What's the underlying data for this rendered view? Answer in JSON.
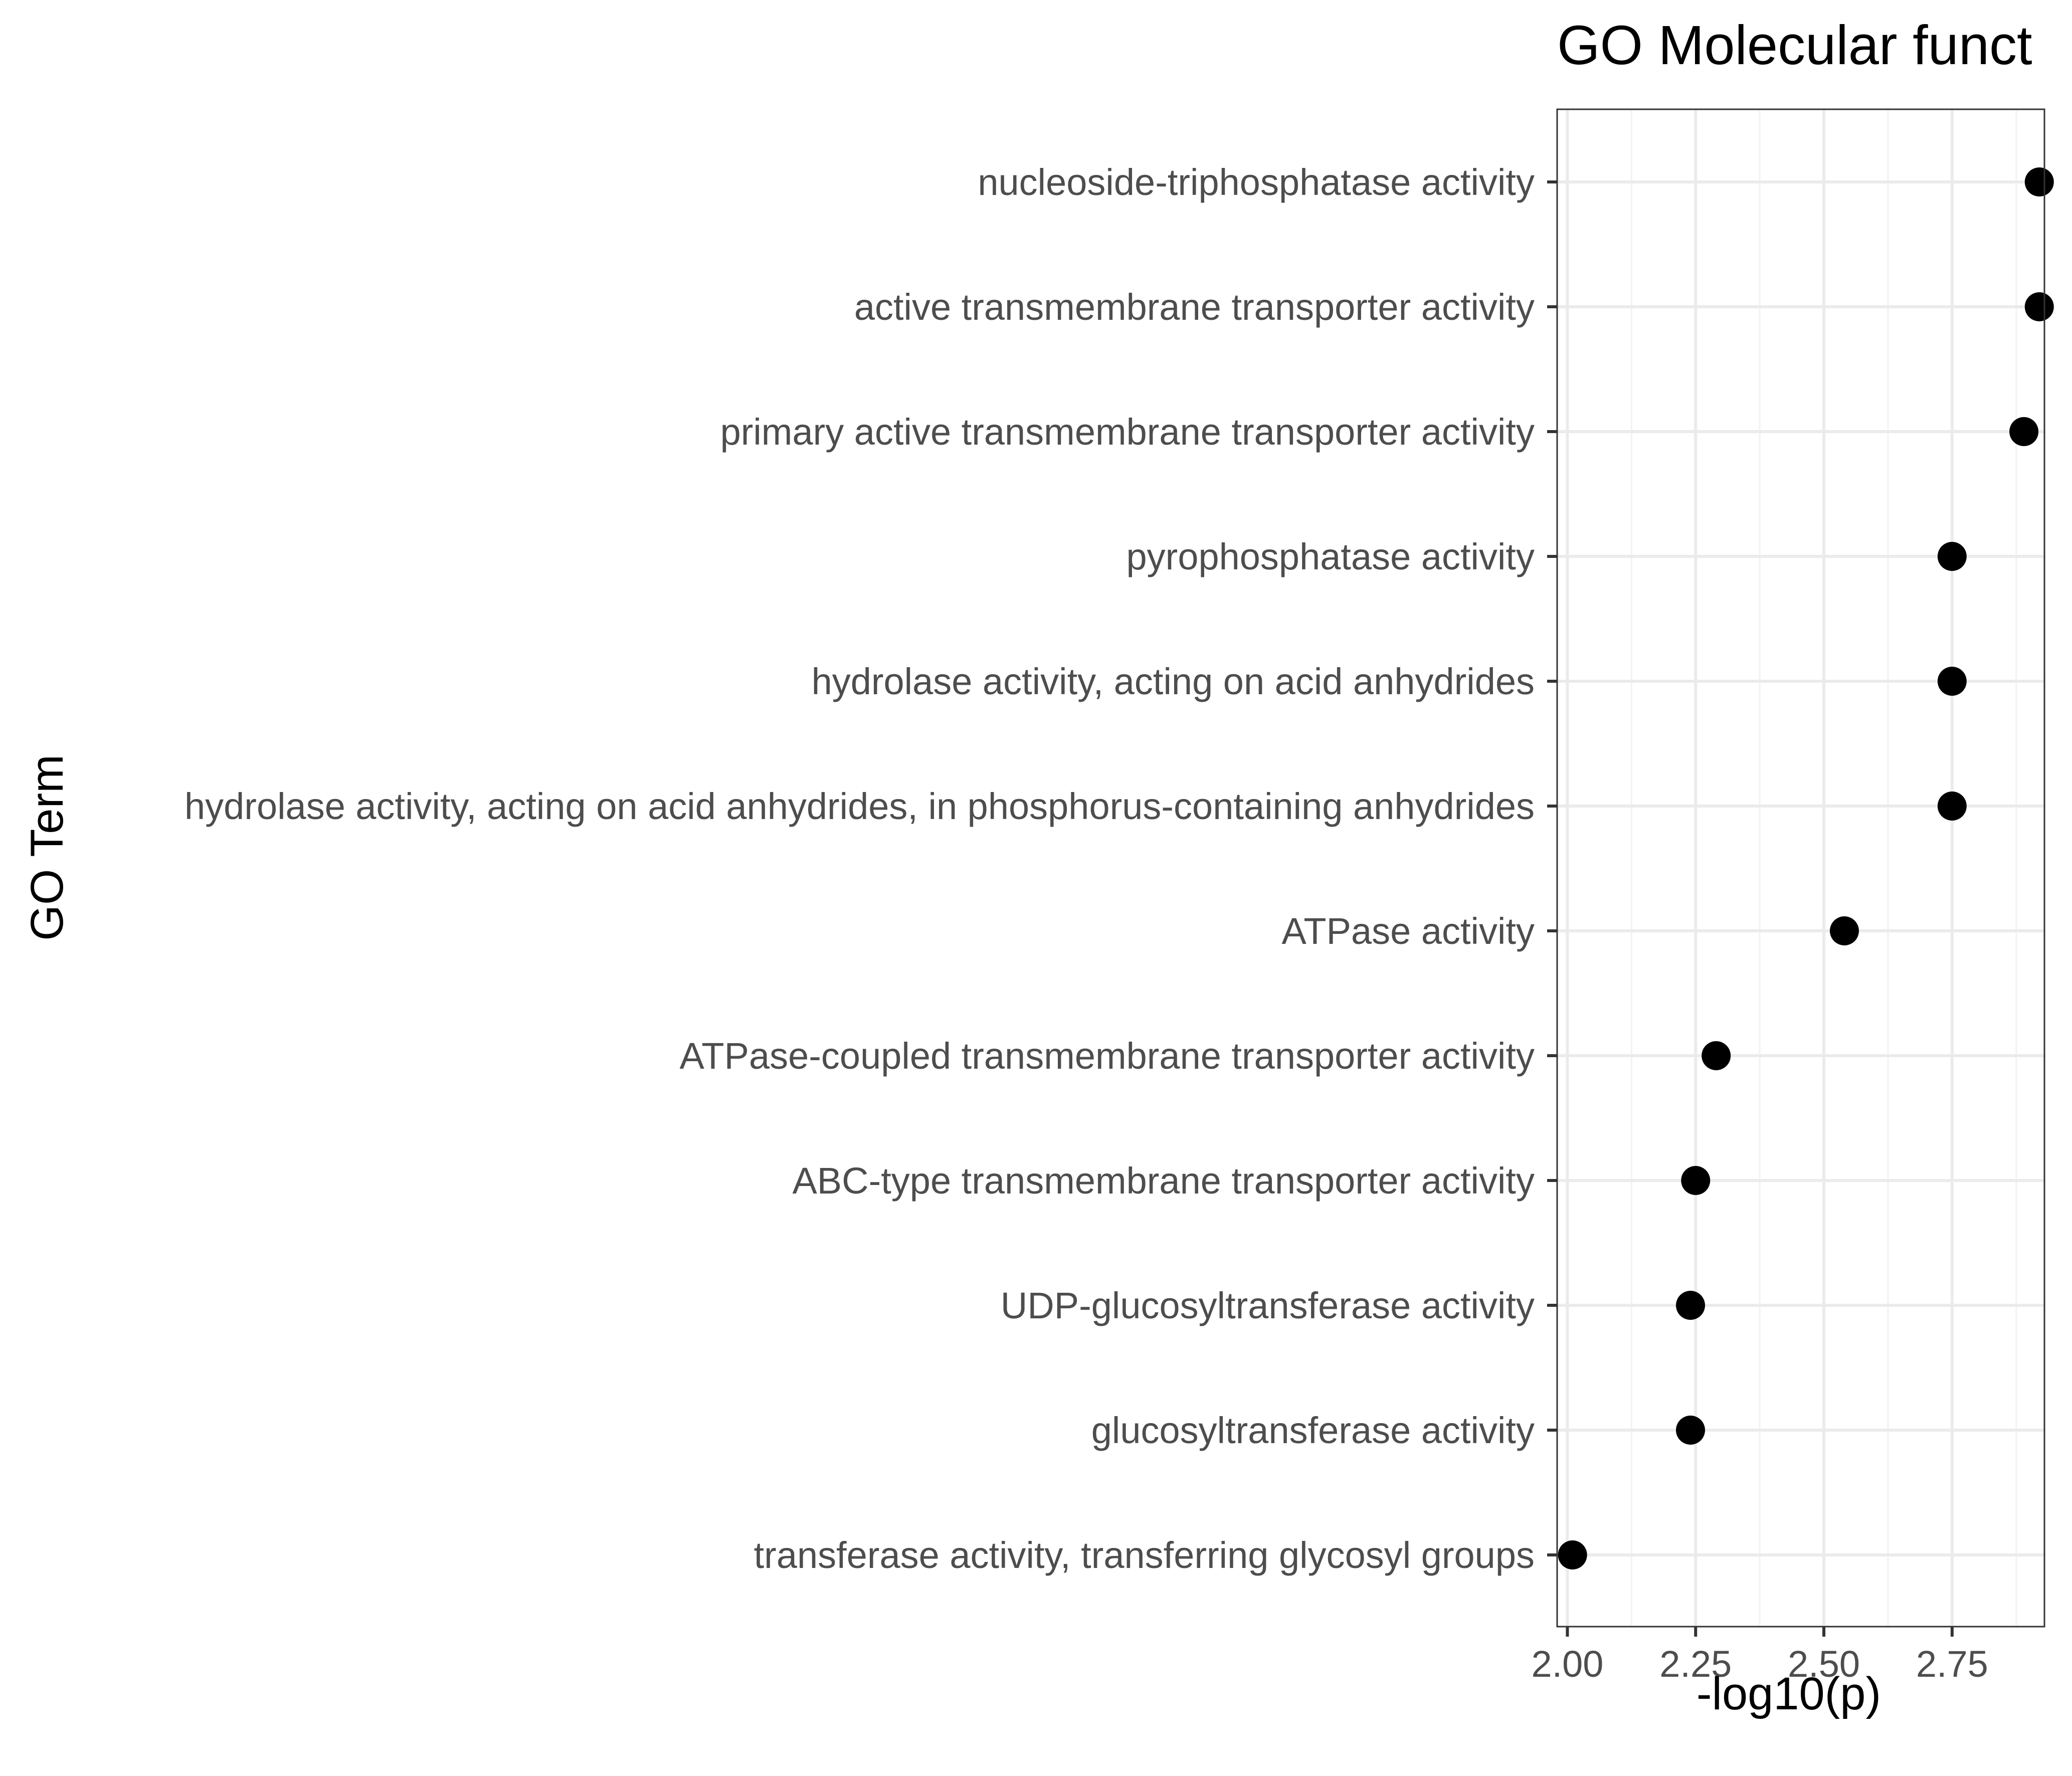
{
  "chart_data": {
    "type": "scatter",
    "title": "GO Molecular funct",
    "xlabel": "-log10(p)",
    "ylabel": "GO Term",
    "xlim": [
      1.98,
      2.93
    ],
    "x_ticks": [
      2.0,
      2.25,
      2.5,
      2.75
    ],
    "x_tick_labels": [
      "2.00",
      "2.25",
      "2.50",
      "2.75"
    ],
    "grid": true,
    "legend": "none",
    "point_color": "#000000",
    "categories": [
      "nucleoside-triphosphatase activity",
      "active transmembrane transporter activity",
      "primary active transmembrane transporter activity",
      "pyrophosphatase activity",
      "hydrolase activity, acting on acid anhydrides",
      "hydrolase activity, acting on acid anhydrides, in phosphorus-containing anhydrides",
      "ATPase activity",
      "ATPase-coupled transmembrane transporter activity",
      "ABC-type transmembrane transporter activity",
      "UDP-glucosyltransferase activity",
      "glucosyltransferase activity",
      "transferase activity, transferring glycosyl groups"
    ],
    "values": [
      2.92,
      2.92,
      2.89,
      2.75,
      2.75,
      2.75,
      2.54,
      2.29,
      2.25,
      2.24,
      2.24,
      2.01
    ]
  }
}
